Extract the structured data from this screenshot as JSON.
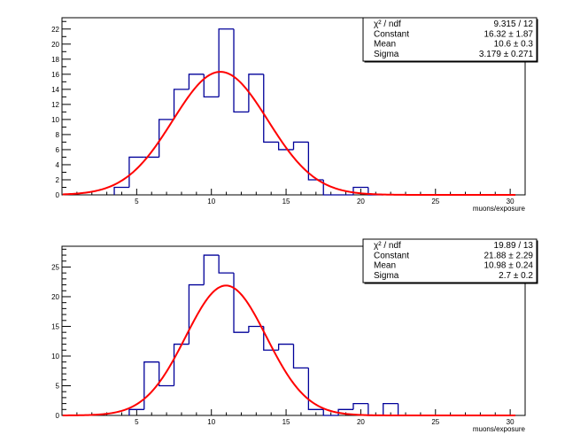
{
  "chart_data": [
    {
      "type": "histogram",
      "xlabel": "muons/exposure",
      "ylabel": "",
      "xlim": [
        0,
        31
      ],
      "ylim": [
        0,
        23.5
      ],
      "xticks": [
        5,
        10,
        15,
        20,
        25,
        30
      ],
      "yticks": [
        0,
        2,
        4,
        6,
        8,
        10,
        12,
        14,
        16,
        18,
        20,
        22
      ],
      "histogram": {
        "bin_width": 1,
        "bin_low_edges": [
          3.5,
          4.5,
          5.5,
          6.5,
          7.5,
          8.5,
          9.5,
          10.5,
          11.5,
          12.5,
          13.5,
          14.5,
          15.5,
          16.5,
          17.5,
          18.5,
          19.5,
          20.5
        ],
        "counts": [
          1,
          5,
          5,
          10,
          14,
          16,
          13,
          22,
          11,
          16,
          7,
          6,
          7,
          2,
          0,
          0,
          1,
          0
        ],
        "color": "#000099"
      },
      "fit": {
        "function": "gaus",
        "constant": 16.32,
        "mean": 10.6,
        "sigma": 3.179,
        "color": "#ff0000"
      },
      "stats": [
        {
          "name": "χ² / ndf",
          "value": "9.315 / 12"
        },
        {
          "name": "Constant",
          "value": "16.32 ± 1.87"
        },
        {
          "name": "Mean",
          "value": "10.6 ± 0.3"
        },
        {
          "name": "Sigma",
          "value": "3.179 ± 0.271"
        }
      ]
    },
    {
      "type": "histogram",
      "xlabel": "muons/exposure",
      "ylabel": "",
      "xlim": [
        0,
        31
      ],
      "ylim": [
        0,
        28.5
      ],
      "xticks": [
        5,
        10,
        15,
        20,
        25,
        30
      ],
      "yticks": [
        0,
        5,
        10,
        15,
        20,
        25
      ],
      "histogram": {
        "bin_width": 1,
        "bin_low_edges": [
          4.5,
          5.5,
          6.5,
          7.5,
          8.5,
          9.5,
          10.5,
          11.5,
          12.5,
          13.5,
          14.5,
          15.5,
          16.5,
          17.5,
          18.5,
          19.5,
          20.5,
          21.5,
          22.5
        ],
        "counts": [
          1,
          9,
          5,
          12,
          22,
          27,
          24,
          14,
          15,
          11,
          12,
          8,
          1,
          0,
          1,
          2,
          0,
          2,
          0
        ],
        "color": "#000099"
      },
      "fit": {
        "function": "gaus",
        "constant": 21.88,
        "mean": 10.98,
        "sigma": 2.7,
        "color": "#ff0000"
      },
      "stats": [
        {
          "name": "χ² / ndf",
          "value": "19.89 / 13"
        },
        {
          "name": "Constant",
          "value": "21.88 ± 2.29"
        },
        {
          "name": "Mean",
          "value": "10.98 ± 0.24"
        },
        {
          "name": "Sigma",
          "value": "2.7 ± 0.2"
        }
      ]
    }
  ]
}
